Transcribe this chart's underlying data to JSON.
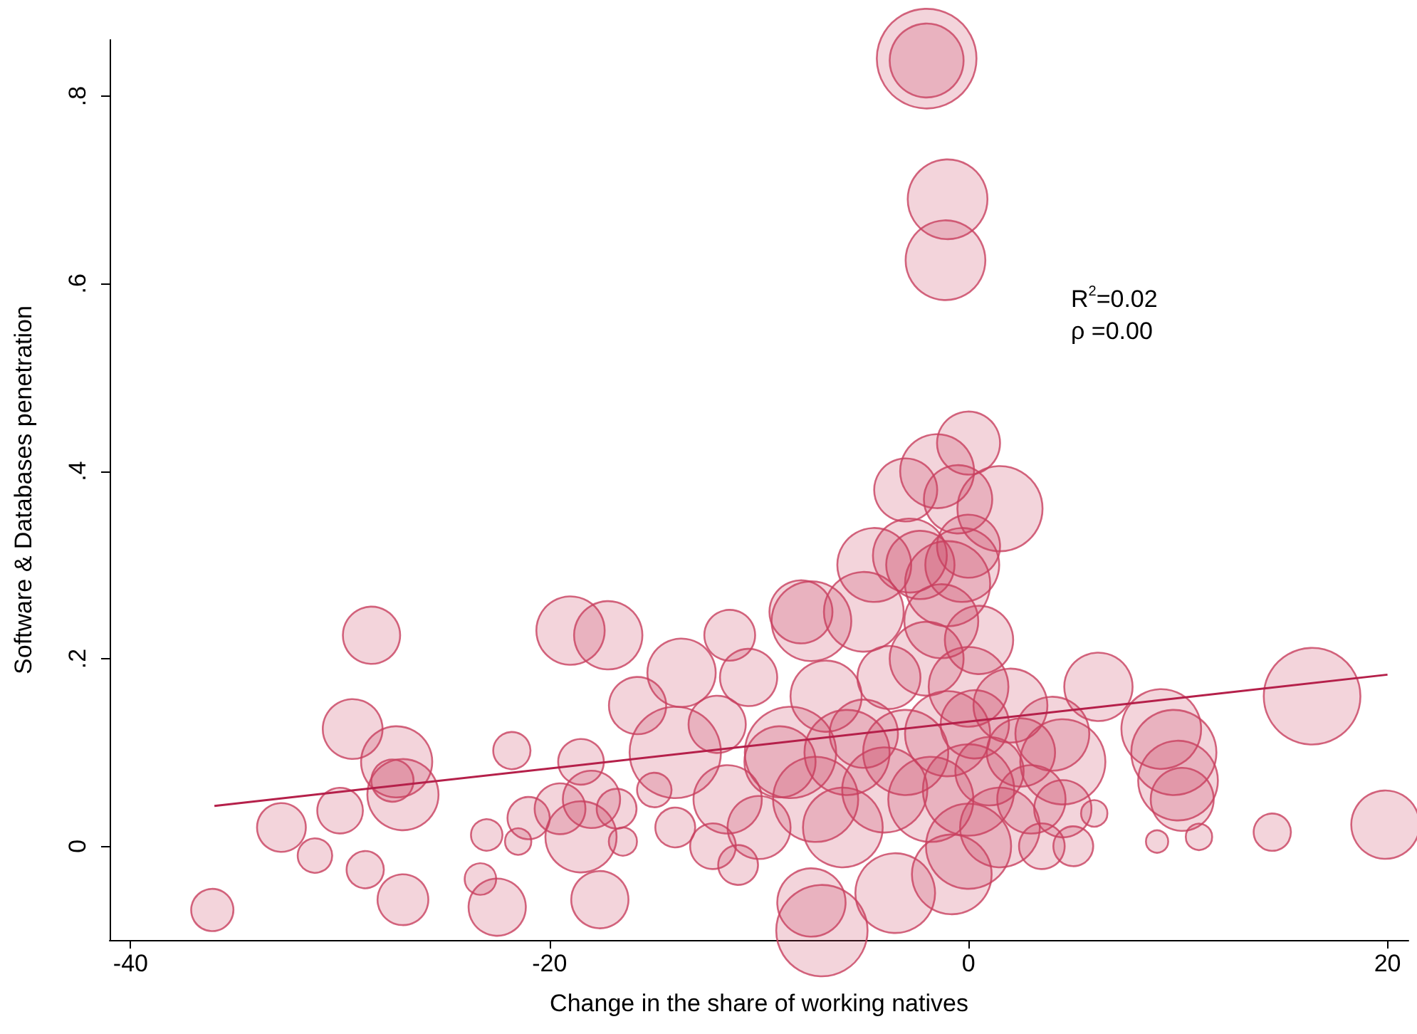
{
  "chart_data": {
    "type": "bubble",
    "xlabel": "Change in the share of working natives",
    "ylabel": "Software & Databases penetration",
    "xlim": [
      -41,
      21
    ],
    "xticks": [
      -40,
      -20,
      0,
      20
    ],
    "ylim": [
      -0.1,
      0.86
    ],
    "yticks": [
      {
        "value": 0,
        "label": "0"
      },
      {
        "value": 0.2,
        "label": ".2"
      },
      {
        "value": 0.4,
        "label": ".4"
      },
      {
        "value": 0.6,
        "label": ".6"
      },
      {
        "value": 0.8,
        "label": ".8"
      }
    ],
    "grid": false,
    "marker": "circle",
    "annotations": [
      "R$^{2}$=0.02",
      "ρ =0.00"
    ],
    "series": [
      {
        "color": "#c8405f",
        "x": [
          -36.1,
          -32.8,
          -31.2,
          -30,
          -28.5,
          -29.4,
          -28.8,
          -27.3,
          -27.5,
          -27,
          -27,
          -23,
          -23.3,
          -22.5,
          -21.8,
          -21.5,
          -21,
          -19.5,
          -19,
          -18.5,
          -18.5,
          -18,
          -17.2,
          -17.6,
          -16.8,
          -16.5,
          -15.8,
          -15,
          -14,
          -14,
          -13.7,
          -12.2,
          -12,
          -11.5,
          -11.4,
          -11,
          -10.5,
          -10,
          -9,
          -8.5,
          -8,
          -7.5,
          -7.3,
          -7,
          -7.5,
          -6.8,
          -6,
          -5.8,
          -5,
          -5,
          -4.5,
          -4,
          -3.8,
          -3.5,
          -3,
          -3,
          -2.8,
          -2.3,
          -2,
          -2,
          -2,
          -1.8,
          -1.5,
          -1.3,
          -1,
          -1.1,
          -1,
          -1,
          -0.8,
          -0.5,
          -0.3,
          0,
          0,
          0,
          0,
          0,
          0.3,
          0.5,
          1,
          1.5,
          1.5,
          2,
          2.5,
          3,
          3.5,
          4,
          4.5,
          4.5,
          5,
          6,
          6.2,
          9,
          9.2,
          9.8,
          10,
          10.2,
          11,
          14.5,
          16.4,
          19.9
        ],
        "values": [
          -0.068,
          0.02,
          -0.01,
          0.038,
          0.225,
          0.125,
          -0.025,
          0.09,
          0.07,
          0.055,
          -0.057,
          0.012,
          -0.035,
          -0.065,
          0.102,
          0.005,
          0.03,
          0.04,
          0.23,
          0.09,
          0.01,
          0.05,
          0.225,
          -0.057,
          0.04,
          0.005,
          0.15,
          0.06,
          0.1,
          0.02,
          0.185,
          0,
          0.13,
          0.05,
          0.225,
          -0.02,
          0.18,
          0.02,
          0.09,
          0.1,
          0.25,
          0.24,
          0.05,
          -0.09,
          -0.06,
          0.16,
          0.02,
          0.1,
          0.25,
          0.12,
          0.3,
          0.06,
          0.18,
          -0.05,
          0.38,
          0.1,
          0.31,
          0.3,
          0.84,
          0.838,
          0.2,
          0.05,
          0.4,
          0.24,
          0.69,
          0.625,
          0.28,
          0.12,
          -0.03,
          0.37,
          0.3,
          0.43,
          0.32,
          0.17,
          0.06,
          0,
          0.13,
          0.22,
          0.08,
          0.36,
          0.02,
          0.15,
          0.1,
          0.05,
          0,
          0.12,
          0.09,
          0.04,
          0,
          0.035,
          0.17,
          0.005,
          0.125,
          0.1,
          0.07,
          0.05,
          0.01,
          0.015,
          0.16,
          0.023
        ],
        "sizes": [
          0.18,
          0.24,
          0.12,
          0.21,
          0.33,
          0.36,
          0.14,
          0.51,
          0.18,
          0.51,
          0.26,
          0.1,
          0.1,
          0.33,
          0.14,
          0.07,
          0.18,
          0.26,
          0.47,
          0.21,
          0.51,
          0.33,
          0.47,
          0.33,
          0.16,
          0.08,
          0.33,
          0.12,
          0.84,
          0.16,
          0.47,
          0.21,
          0.33,
          0.47,
          0.26,
          0.16,
          0.33,
          0.4,
          0.51,
          0.84,
          0.4,
          0.64,
          0.73,
          0.84,
          0.47,
          0.51,
          0.64,
          0.73,
          0.64,
          0.47,
          0.55,
          0.73,
          0.4,
          0.64,
          0.4,
          0.73,
          0.55,
          0.47,
          1,
          0.55,
          0.55,
          0.73,
          0.55,
          0.55,
          0.64,
          0.64,
          0.73,
          0.73,
          0.64,
          0.47,
          0.55,
          0.4,
          0.4,
          0.64,
          0.84,
          0.73,
          0.47,
          0.47,
          0.47,
          0.73,
          0.64,
          0.55,
          0.47,
          0.47,
          0.21,
          0.55,
          0.73,
          0.33,
          0.16,
          0.07,
          0.47,
          0.05,
          0.64,
          0.73,
          0.64,
          0.4,
          0.07,
          0.14,
          0.94,
          0.47
        ]
      },
      {
        "type": "line",
        "color": "#b5204a",
        "marker": "none",
        "line_style": "solid",
        "x": [
          -36,
          20
        ],
        "values": [
          0.043,
          0.183
        ]
      }
    ]
  }
}
